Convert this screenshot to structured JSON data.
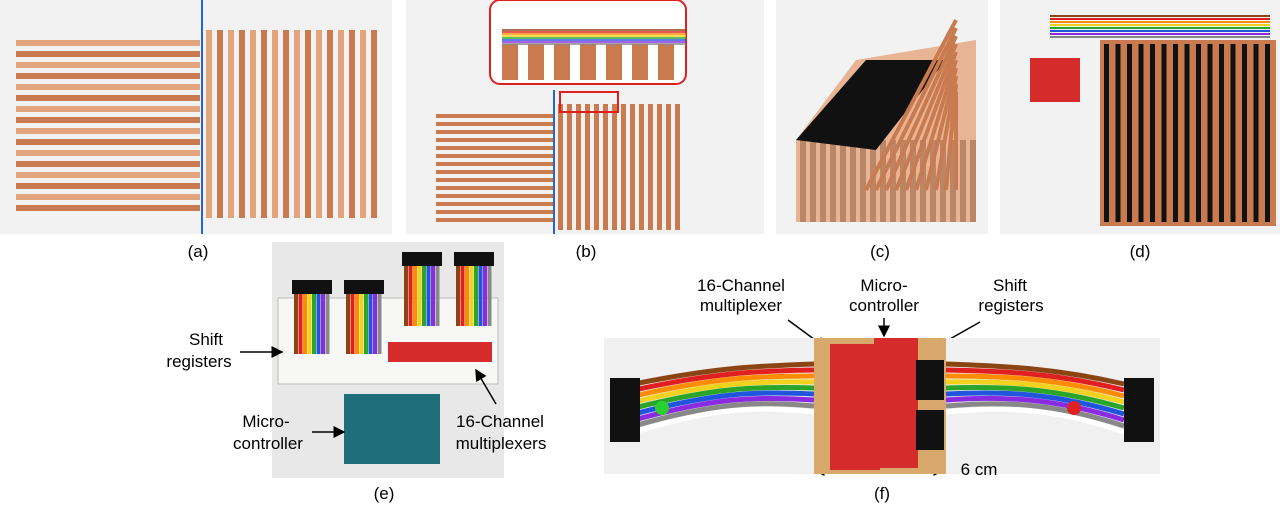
{
  "panels": {
    "a": {
      "caption": "(a)"
    },
    "b": {
      "caption": "(b)"
    },
    "c": {
      "caption": "(c)"
    },
    "d": {
      "caption": "(d)"
    },
    "e": {
      "caption": "(e)",
      "labels": {
        "shift_registers_l1": "Shift",
        "shift_registers_l2": "registers",
        "microcontroller_l1": "Micro-",
        "microcontroller_l2": "controller",
        "multiplexers_l1": "16-Channel",
        "multiplexers_l2": "multiplexers"
      }
    },
    "f": {
      "caption": "(f)",
      "labels": {
        "multiplexer_l1": "16-Channel",
        "multiplexer_l2": "multiplexer",
        "microcontroller_l1": "Micro-",
        "microcontroller_l2": "controller",
        "shift_registers_l1": "Shift",
        "shift_registers_l2": "registers",
        "dimension": "6 cm"
      }
    }
  },
  "colors": {
    "copper": "#c97a4e",
    "copper_light": "#e3a57e",
    "background": "#f2f2f2",
    "blue_line": "#2266cc",
    "black": "#111111",
    "red_board": "#d62b2b"
  }
}
